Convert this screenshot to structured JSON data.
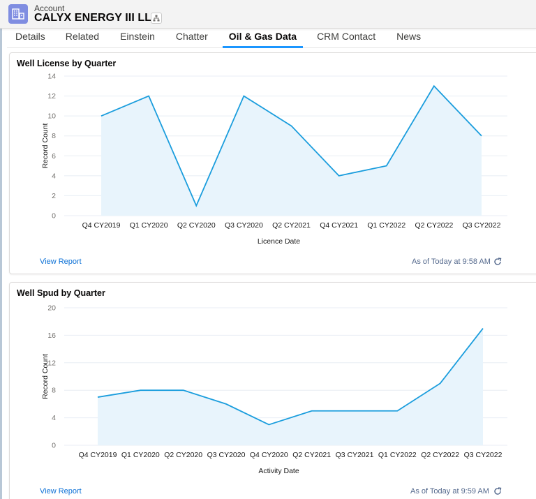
{
  "header": {
    "object_label": "Account",
    "record_name": "CALYX ENERGY III LLC",
    "icons": {
      "object": "building-icon",
      "hierarchy": "hierarchy-icon"
    }
  },
  "tabs": [
    {
      "label": "Details",
      "active": false
    },
    {
      "label": "Related",
      "active": false
    },
    {
      "label": "Einstein",
      "active": false
    },
    {
      "label": "Chatter",
      "active": false
    },
    {
      "label": "Oil & Gas Data",
      "active": true
    },
    {
      "label": "CRM Contact",
      "active": false
    },
    {
      "label": "News",
      "active": false
    }
  ],
  "colors": {
    "line": "#1a9ddd",
    "area": "#e8f4fc",
    "grid": "#e8eef4",
    "link": "#0b70d6",
    "accent_tab": "#1b96ff"
  },
  "cards": [
    {
      "title": "Well License by Quarter",
      "view_report": "View Report",
      "as_of": "As of Today at 9:58 AM",
      "refresh_icon": "refresh-icon"
    },
    {
      "title": "Well Spud by Quarter",
      "view_report": "View Report",
      "as_of": "As of Today at 9:59 AM",
      "refresh_icon": "refresh-icon"
    }
  ],
  "chart_data": [
    {
      "type": "area",
      "title": "Well License by Quarter",
      "xlabel": "Licence Date",
      "ylabel": "Record Count",
      "categories": [
        "Q4 CY2019",
        "Q1 CY2020",
        "Q2 CY2020",
        "Q3 CY2020",
        "Q2 CY2021",
        "Q4 CY2021",
        "Q1 CY2022",
        "Q2 CY2022",
        "Q3 CY2022"
      ],
      "values": [
        10,
        12,
        1,
        12,
        9,
        4,
        5,
        13,
        8
      ],
      "yticks": [
        0,
        2,
        4,
        6,
        8,
        10,
        12,
        14
      ],
      "ylim": [
        0,
        14
      ],
      "grid": true,
      "legend": false
    },
    {
      "type": "area",
      "title": "Well Spud by Quarter",
      "xlabel": "Activity Date",
      "ylabel": "Record Count",
      "categories": [
        "Q4 CY2019",
        "Q1 CY2020",
        "Q2 CY2020",
        "Q3 CY2020",
        "Q4 CY2020",
        "Q2 CY2021",
        "Q3 CY2021",
        "Q1 CY2022",
        "Q2 CY2022",
        "Q3 CY2022"
      ],
      "values": [
        7,
        8,
        8,
        6,
        3,
        5,
        5,
        5,
        9,
        17
      ],
      "yticks": [
        0,
        4,
        8,
        12,
        16,
        20
      ],
      "ylim": [
        0,
        20
      ],
      "grid": true,
      "legend": false
    }
  ]
}
